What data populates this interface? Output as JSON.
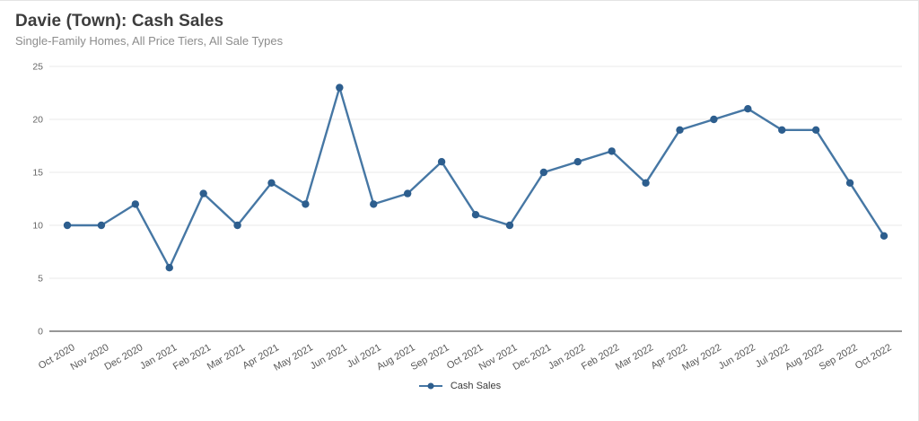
{
  "chart_data": {
    "type": "line",
    "title": "Davie (Town): Cash Sales",
    "subtitle": "Single-Family Homes, All Price Tiers, All Sale Types",
    "categories": [
      "Oct 2020",
      "Nov 2020",
      "Dec 2020",
      "Jan 2021",
      "Feb 2021",
      "Mar 2021",
      "Apr 2021",
      "May 2021",
      "Jun 2021",
      "Jul 2021",
      "Aug 2021",
      "Sep 2021",
      "Oct 2021",
      "Nov 2021",
      "Dec 2021",
      "Jan 2022",
      "Feb 2022",
      "Mar 2022",
      "Apr 2022",
      "May 2022",
      "Jun 2022",
      "Jul 2022",
      "Aug 2022",
      "Sep 2022",
      "Oct 2022"
    ],
    "series": [
      {
        "name": "Cash Sales",
        "values": [
          10,
          10,
          12,
          6,
          13,
          10,
          14,
          12,
          23,
          12,
          13,
          16,
          11,
          10,
          15,
          16,
          17,
          14,
          19,
          20,
          21,
          19,
          19,
          14,
          9
        ]
      }
    ],
    "xlabel": "",
    "ylabel": "",
    "ylim": [
      0,
      25
    ],
    "yticks": [
      0,
      5,
      10,
      15,
      20,
      25
    ],
    "grid": true,
    "legend_position": "bottom",
    "colors": {
      "line": "#4677a4",
      "marker": "#2d5e8e",
      "gridline": "#e8e8e8",
      "axis_line": "#757575",
      "y_tick_label": "#666666",
      "x_tick_label": "#595959",
      "title": "#3d3d3d",
      "subtitle": "#8c8c8c"
    }
  }
}
